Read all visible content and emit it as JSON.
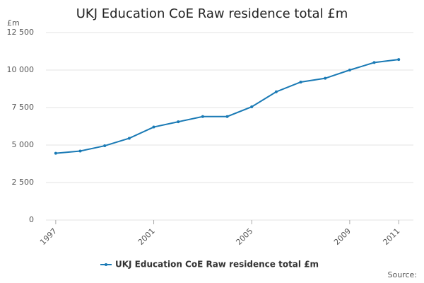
{
  "chart_data": {
    "type": "line",
    "title": "UKJ Education CoE Raw residence total £m",
    "y_unit_label": "£m",
    "source_label": "Source:",
    "x": [
      1997,
      1998,
      1999,
      2000,
      2001,
      2002,
      2003,
      2004,
      2005,
      2006,
      2007,
      2008,
      2009,
      2010,
      2011
    ],
    "series": [
      {
        "name": "UKJ Education CoE Raw residence total £m",
        "color": "#1a7ab5",
        "values": [
          4450,
          4600,
          4950,
          5450,
          6200,
          6550,
          6900,
          6900,
          7550,
          8550,
          9200,
          9450,
          10000,
          10500,
          10700
        ]
      }
    ],
    "xlim": [
      1996.6,
      2011.6
    ],
    "xticks": [
      1997,
      2001,
      2005,
      2009,
      2011
    ],
    "ylim": [
      0,
      12500
    ],
    "yticks": [
      0,
      {
        "value": 2500,
        "label": "2 500"
      },
      {
        "value": 5000,
        "label": "5 000"
      },
      {
        "value": 7500,
        "label": "7 500"
      },
      {
        "value": 10000,
        "label": "10 000"
      },
      {
        "value": 12500,
        "label": "12 500"
      }
    ],
    "grid": true
  }
}
